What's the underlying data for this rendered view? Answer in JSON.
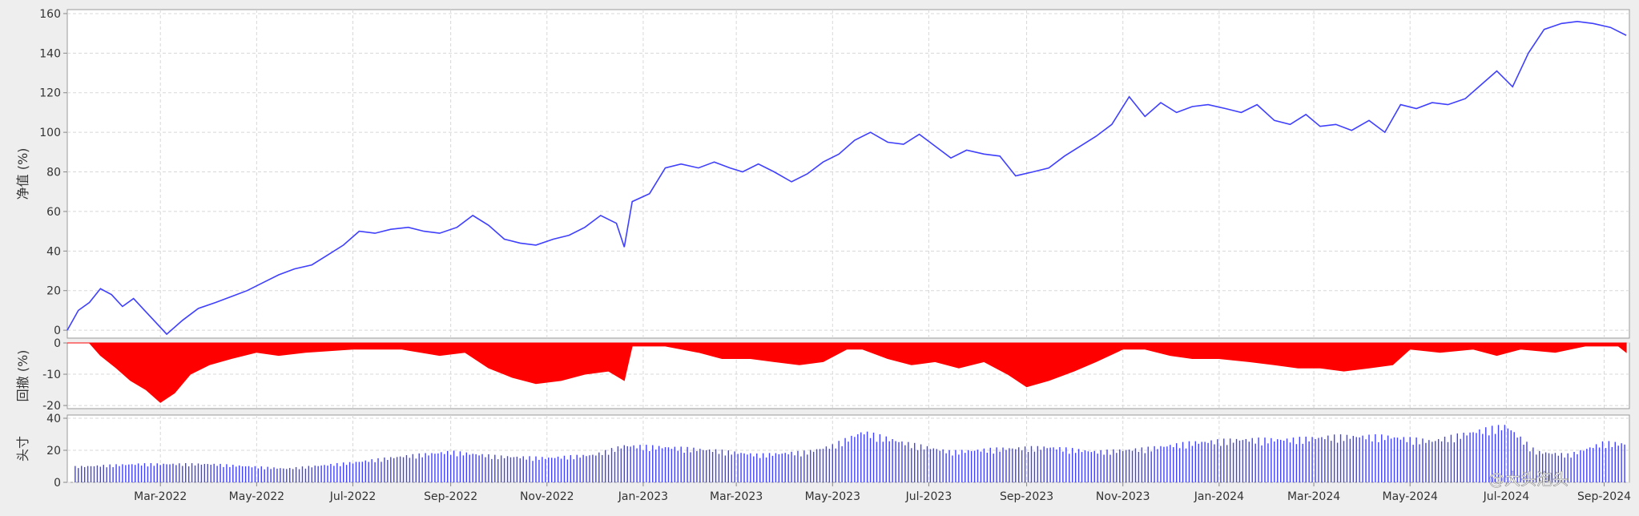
{
  "chart_data": [
    {
      "type": "line",
      "ylabel": "净值 (%)",
      "ylim": [
        -4,
        162
      ],
      "yticks": [
        0,
        20,
        40,
        60,
        80,
        100,
        120,
        140,
        160
      ],
      "grid": true,
      "color": "#3f3fff",
      "series": [
        {
          "x": [
            "2022-01-01",
            "2022-01-08",
            "2022-01-15",
            "2022-01-22",
            "2022-01-29",
            "2022-02-05",
            "2022-02-12",
            "2022-02-19",
            "2022-02-26",
            "2022-03-05",
            "2022-03-15",
            "2022-03-25",
            "2022-04-05",
            "2022-04-15",
            "2022-04-25",
            "2022-05-05",
            "2022-05-15",
            "2022-05-25",
            "2022-06-05",
            "2022-06-15",
            "2022-06-25",
            "2022-07-05",
            "2022-07-15",
            "2022-07-25",
            "2022-08-05",
            "2022-08-15",
            "2022-08-25",
            "2022-09-05",
            "2022-09-15",
            "2022-09-25",
            "2022-10-05",
            "2022-10-15",
            "2022-10-25",
            "2022-11-05",
            "2022-11-15",
            "2022-11-25",
            "2022-12-05",
            "2022-12-15",
            "2022-12-20",
            "2022-12-25",
            "2023-01-05",
            "2023-01-15",
            "2023-01-25",
            "2023-02-05",
            "2023-02-15",
            "2023-02-25",
            "2023-03-05",
            "2023-03-15",
            "2023-03-25",
            "2023-04-05",
            "2023-04-15",
            "2023-04-25",
            "2023-05-05",
            "2023-05-15",
            "2023-05-25",
            "2023-06-05",
            "2023-06-15",
            "2023-06-25",
            "2023-07-05",
            "2023-07-15",
            "2023-07-25",
            "2023-08-05",
            "2023-08-15",
            "2023-08-25",
            "2023-09-05",
            "2023-09-15",
            "2023-09-25",
            "2023-10-05",
            "2023-10-15",
            "2023-10-25",
            "2023-11-05",
            "2023-11-15",
            "2023-11-25",
            "2023-12-05",
            "2023-12-15",
            "2023-12-25",
            "2024-01-05",
            "2024-01-15",
            "2024-01-25",
            "2024-02-05",
            "2024-02-15",
            "2024-02-25",
            "2024-03-05",
            "2024-03-15",
            "2024-03-25",
            "2024-04-05",
            "2024-04-15",
            "2024-04-25",
            "2024-05-05",
            "2024-05-15",
            "2024-05-25",
            "2024-06-05",
            "2024-06-15",
            "2024-06-25",
            "2024-07-05",
            "2024-07-15",
            "2024-07-25",
            "2024-08-05",
            "2024-08-15",
            "2024-08-25",
            "2024-09-05",
            "2024-09-15"
          ],
          "values": [
            0,
            10,
            14,
            21,
            18,
            12,
            16,
            10,
            4,
            -2,
            5,
            11,
            14,
            17,
            20,
            24,
            28,
            31,
            33,
            38,
            43,
            50,
            49,
            51,
            52,
            50,
            49,
            52,
            58,
            53,
            46,
            44,
            43,
            46,
            48,
            52,
            58,
            54,
            42,
            65,
            69,
            82,
            84,
            82,
            85,
            82,
            80,
            84,
            80,
            75,
            79,
            85,
            89,
            96,
            100,
            95,
            94,
            99,
            93,
            87,
            91,
            89,
            88,
            78,
            80,
            82,
            88,
            93,
            98,
            104,
            118,
            108,
            115,
            110,
            113,
            114,
            112,
            110,
            114,
            106,
            104,
            109,
            103,
            104,
            101,
            106,
            100,
            114,
            112,
            115,
            114,
            117,
            124,
            131,
            123,
            140,
            152,
            155,
            156,
            155,
            153,
            149
          ]
        }
      ]
    },
    {
      "type": "area",
      "ylabel": "回撤 (%)",
      "ylim": [
        -21,
        0
      ],
      "yticks": [
        0,
        -10,
        -20
      ],
      "grid": true,
      "color": "#ff0000",
      "series": [
        {
          "x": [
            "2022-01-01",
            "2022-01-15",
            "2022-01-22",
            "2022-02-01",
            "2022-02-10",
            "2022-02-20",
            "2022-03-01",
            "2022-03-10",
            "2022-03-20",
            "2022-04-01",
            "2022-04-15",
            "2022-05-01",
            "2022-05-15",
            "2022-06-01",
            "2022-07-01",
            "2022-08-01",
            "2022-08-25",
            "2022-09-10",
            "2022-09-25",
            "2022-10-10",
            "2022-10-25",
            "2022-11-10",
            "2022-11-25",
            "2022-12-10",
            "2022-12-20",
            "2022-12-25",
            "2023-01-15",
            "2023-02-05",
            "2023-02-20",
            "2023-03-10",
            "2023-03-25",
            "2023-04-10",
            "2023-04-25",
            "2023-05-10",
            "2023-05-20",
            "2023-06-05",
            "2023-06-20",
            "2023-07-05",
            "2023-07-20",
            "2023-08-05",
            "2023-08-20",
            "2023-09-01",
            "2023-09-15",
            "2023-10-01",
            "2023-10-15",
            "2023-11-01",
            "2023-11-15",
            "2023-12-01",
            "2023-12-15",
            "2024-01-01",
            "2024-01-20",
            "2024-02-05",
            "2024-02-20",
            "2024-03-05",
            "2024-03-20",
            "2024-04-05",
            "2024-04-20",
            "2024-05-01",
            "2024-05-20",
            "2024-06-10",
            "2024-06-25",
            "2024-07-10",
            "2024-08-01",
            "2024-08-20",
            "2024-09-10",
            "2024-09-15"
          ],
          "values": [
            0,
            0,
            -4,
            -8,
            -12,
            -15,
            -19,
            -16,
            -10,
            -7,
            -5,
            -3,
            -4,
            -3,
            -2,
            -2,
            -4,
            -3,
            -8,
            -11,
            -13,
            -12,
            -10,
            -9,
            -12,
            -1,
            -1,
            -3,
            -5,
            -5,
            -6,
            -7,
            -6,
            -2,
            -2,
            -5,
            -7,
            -6,
            -8,
            -6,
            -10,
            -14,
            -12,
            -9,
            -6,
            -2,
            -2,
            -4,
            -5,
            -5,
            -6,
            -7,
            -8,
            -8,
            -9,
            -8,
            -7,
            -2,
            -3,
            -2,
            -4,
            -2,
            -3,
            -1,
            -1,
            -3
          ]
        }
      ]
    },
    {
      "type": "bar",
      "ylabel": "头寸",
      "ylim": [
        0,
        42
      ],
      "yticks": [
        0,
        20,
        40
      ],
      "grid": true,
      "color": "#3f3fff",
      "xticks": [
        "Mar-2022",
        "May-2022",
        "Jul-2022",
        "Sep-2022",
        "Nov-2022",
        "Jan-2023",
        "Mar-2023",
        "May-2023",
        "Jul-2023",
        "Sep-2023",
        "Nov-2023",
        "Jan-2024",
        "Mar-2024",
        "May-2024",
        "Jul-2024",
        "Sep-2024"
      ],
      "series": [
        {
          "x": [
            "2022-01-01",
            "2022-02-15",
            "2022-04-01",
            "2022-05-20",
            "2022-07-01",
            "2022-08-01",
            "2022-09-01",
            "2022-10-01",
            "2022-11-01",
            "2022-12-01",
            "2022-12-20",
            "2023-01-15",
            "2023-02-15",
            "2023-03-15",
            "2023-04-15",
            "2023-05-01",
            "2023-05-20",
            "2023-06-15",
            "2023-07-15",
            "2023-08-15",
            "2023-09-15",
            "2023-10-15",
            "2023-11-15",
            "2023-12-15",
            "2024-01-15",
            "2024-02-15",
            "2024-03-15",
            "2024-04-15",
            "2024-05-15",
            "2024-06-15",
            "2024-07-01",
            "2024-07-20",
            "2024-08-10",
            "2024-09-01",
            "2024-09-15"
          ],
          "values": [
            10,
            12,
            12,
            9,
            13,
            17,
            20,
            17,
            16,
            18,
            24,
            23,
            21,
            18,
            20,
            24,
            33,
            26,
            20,
            22,
            23,
            20,
            22,
            26,
            28,
            28,
            30,
            30,
            27,
            34,
            37,
            20,
            18,
            26,
            25
          ]
        }
      ]
    }
  ],
  "watermark": "@大头泡头"
}
